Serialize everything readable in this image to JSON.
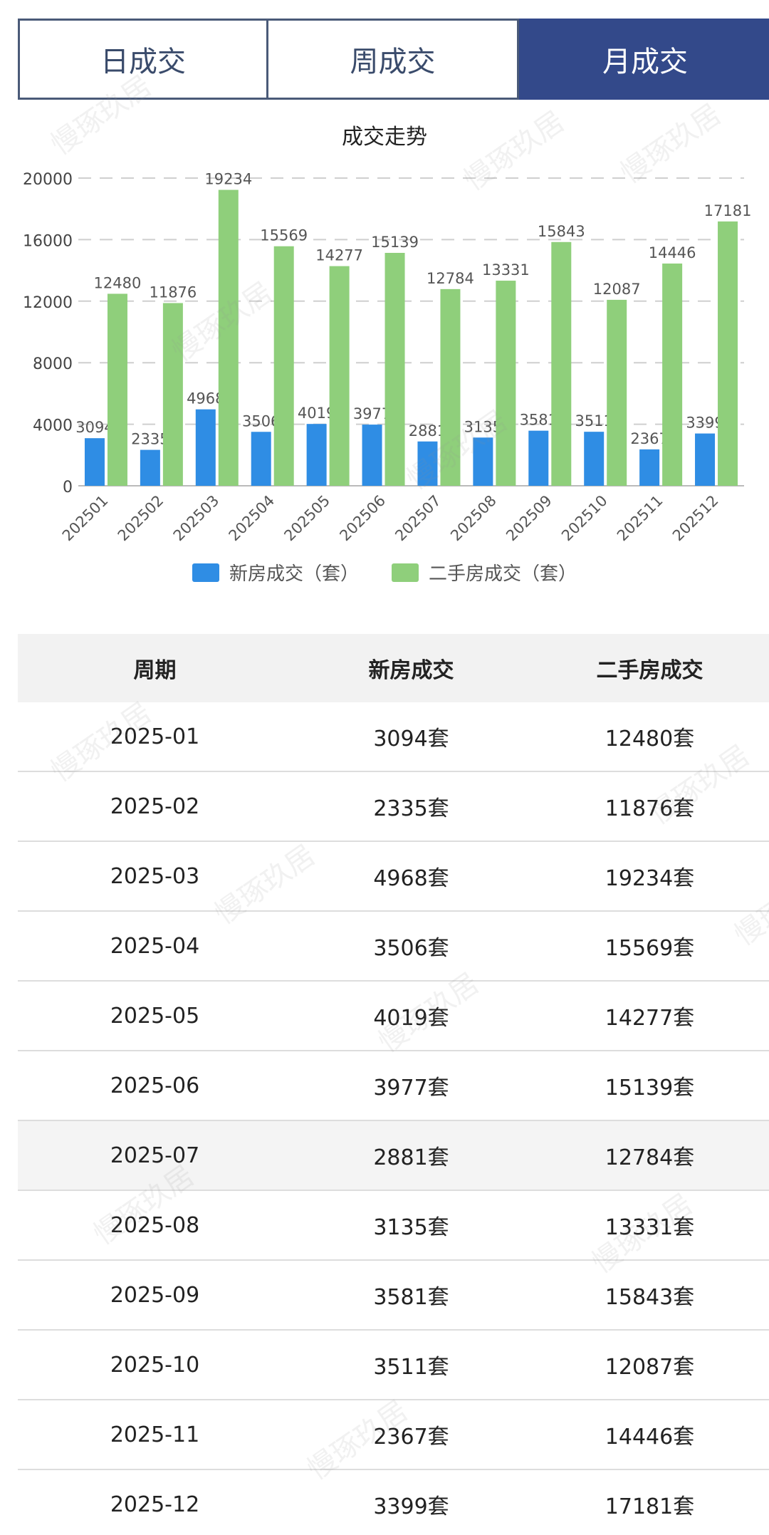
{
  "tabs": [
    {
      "label": "日成交",
      "active": false
    },
    {
      "label": "周成交",
      "active": false
    },
    {
      "label": "月成交",
      "active": true
    }
  ],
  "colors": {
    "new_house": "#2f8de4",
    "second_hand": "#8fcf7b",
    "tab_active_bg": "#33498a"
  },
  "watermark_text": "慢琢玖居",
  "chart_data": {
    "type": "bar",
    "title": "成交走势",
    "categories": [
      "202501",
      "202502",
      "202503",
      "202504",
      "202505",
      "202506",
      "202507",
      "202508",
      "202509",
      "202510",
      "202511",
      "202512"
    ],
    "series": [
      {
        "name": "新房成交（套）",
        "values": [
          3094,
          2335,
          4968,
          3506,
          4019,
          3977,
          2881,
          3135,
          3581,
          3511,
          2367,
          3399
        ]
      },
      {
        "name": "二手房成交（套）",
        "values": [
          12480,
          11876,
          19234,
          15569,
          14277,
          15139,
          12784,
          13331,
          15843,
          12087,
          14446,
          17181
        ]
      }
    ],
    "yticks": [
      "0",
      "4000",
      "8000",
      "12000",
      "16000",
      "20000"
    ],
    "ylim": [
      0,
      20000
    ],
    "grid": true,
    "legend_position": "bottom"
  },
  "table": {
    "headers": [
      "周期",
      "新房成交",
      "二手房成交"
    ],
    "rows": [
      {
        "period": "2025-01",
        "new": "3094套",
        "second": "12480套"
      },
      {
        "period": "2025-02",
        "new": "2335套",
        "second": "11876套"
      },
      {
        "period": "2025-03",
        "new": "4968套",
        "second": "19234套"
      },
      {
        "period": "2025-04",
        "new": "3506套",
        "second": "15569套"
      },
      {
        "period": "2025-05",
        "new": "4019套",
        "second": "14277套"
      },
      {
        "period": "2025-06",
        "new": "3977套",
        "second": "15139套"
      },
      {
        "period": "2025-07",
        "new": "2881套",
        "second": "12784套"
      },
      {
        "period": "2025-08",
        "new": "3135套",
        "second": "13331套"
      },
      {
        "period": "2025-09",
        "new": "3581套",
        "second": "15843套"
      },
      {
        "period": "2025-10",
        "new": "3511套",
        "second": "12087套"
      },
      {
        "period": "2025-11",
        "new": "2367套",
        "second": "14446套"
      },
      {
        "period": "2025-12",
        "new": "3399套",
        "second": "17181套"
      }
    ]
  }
}
